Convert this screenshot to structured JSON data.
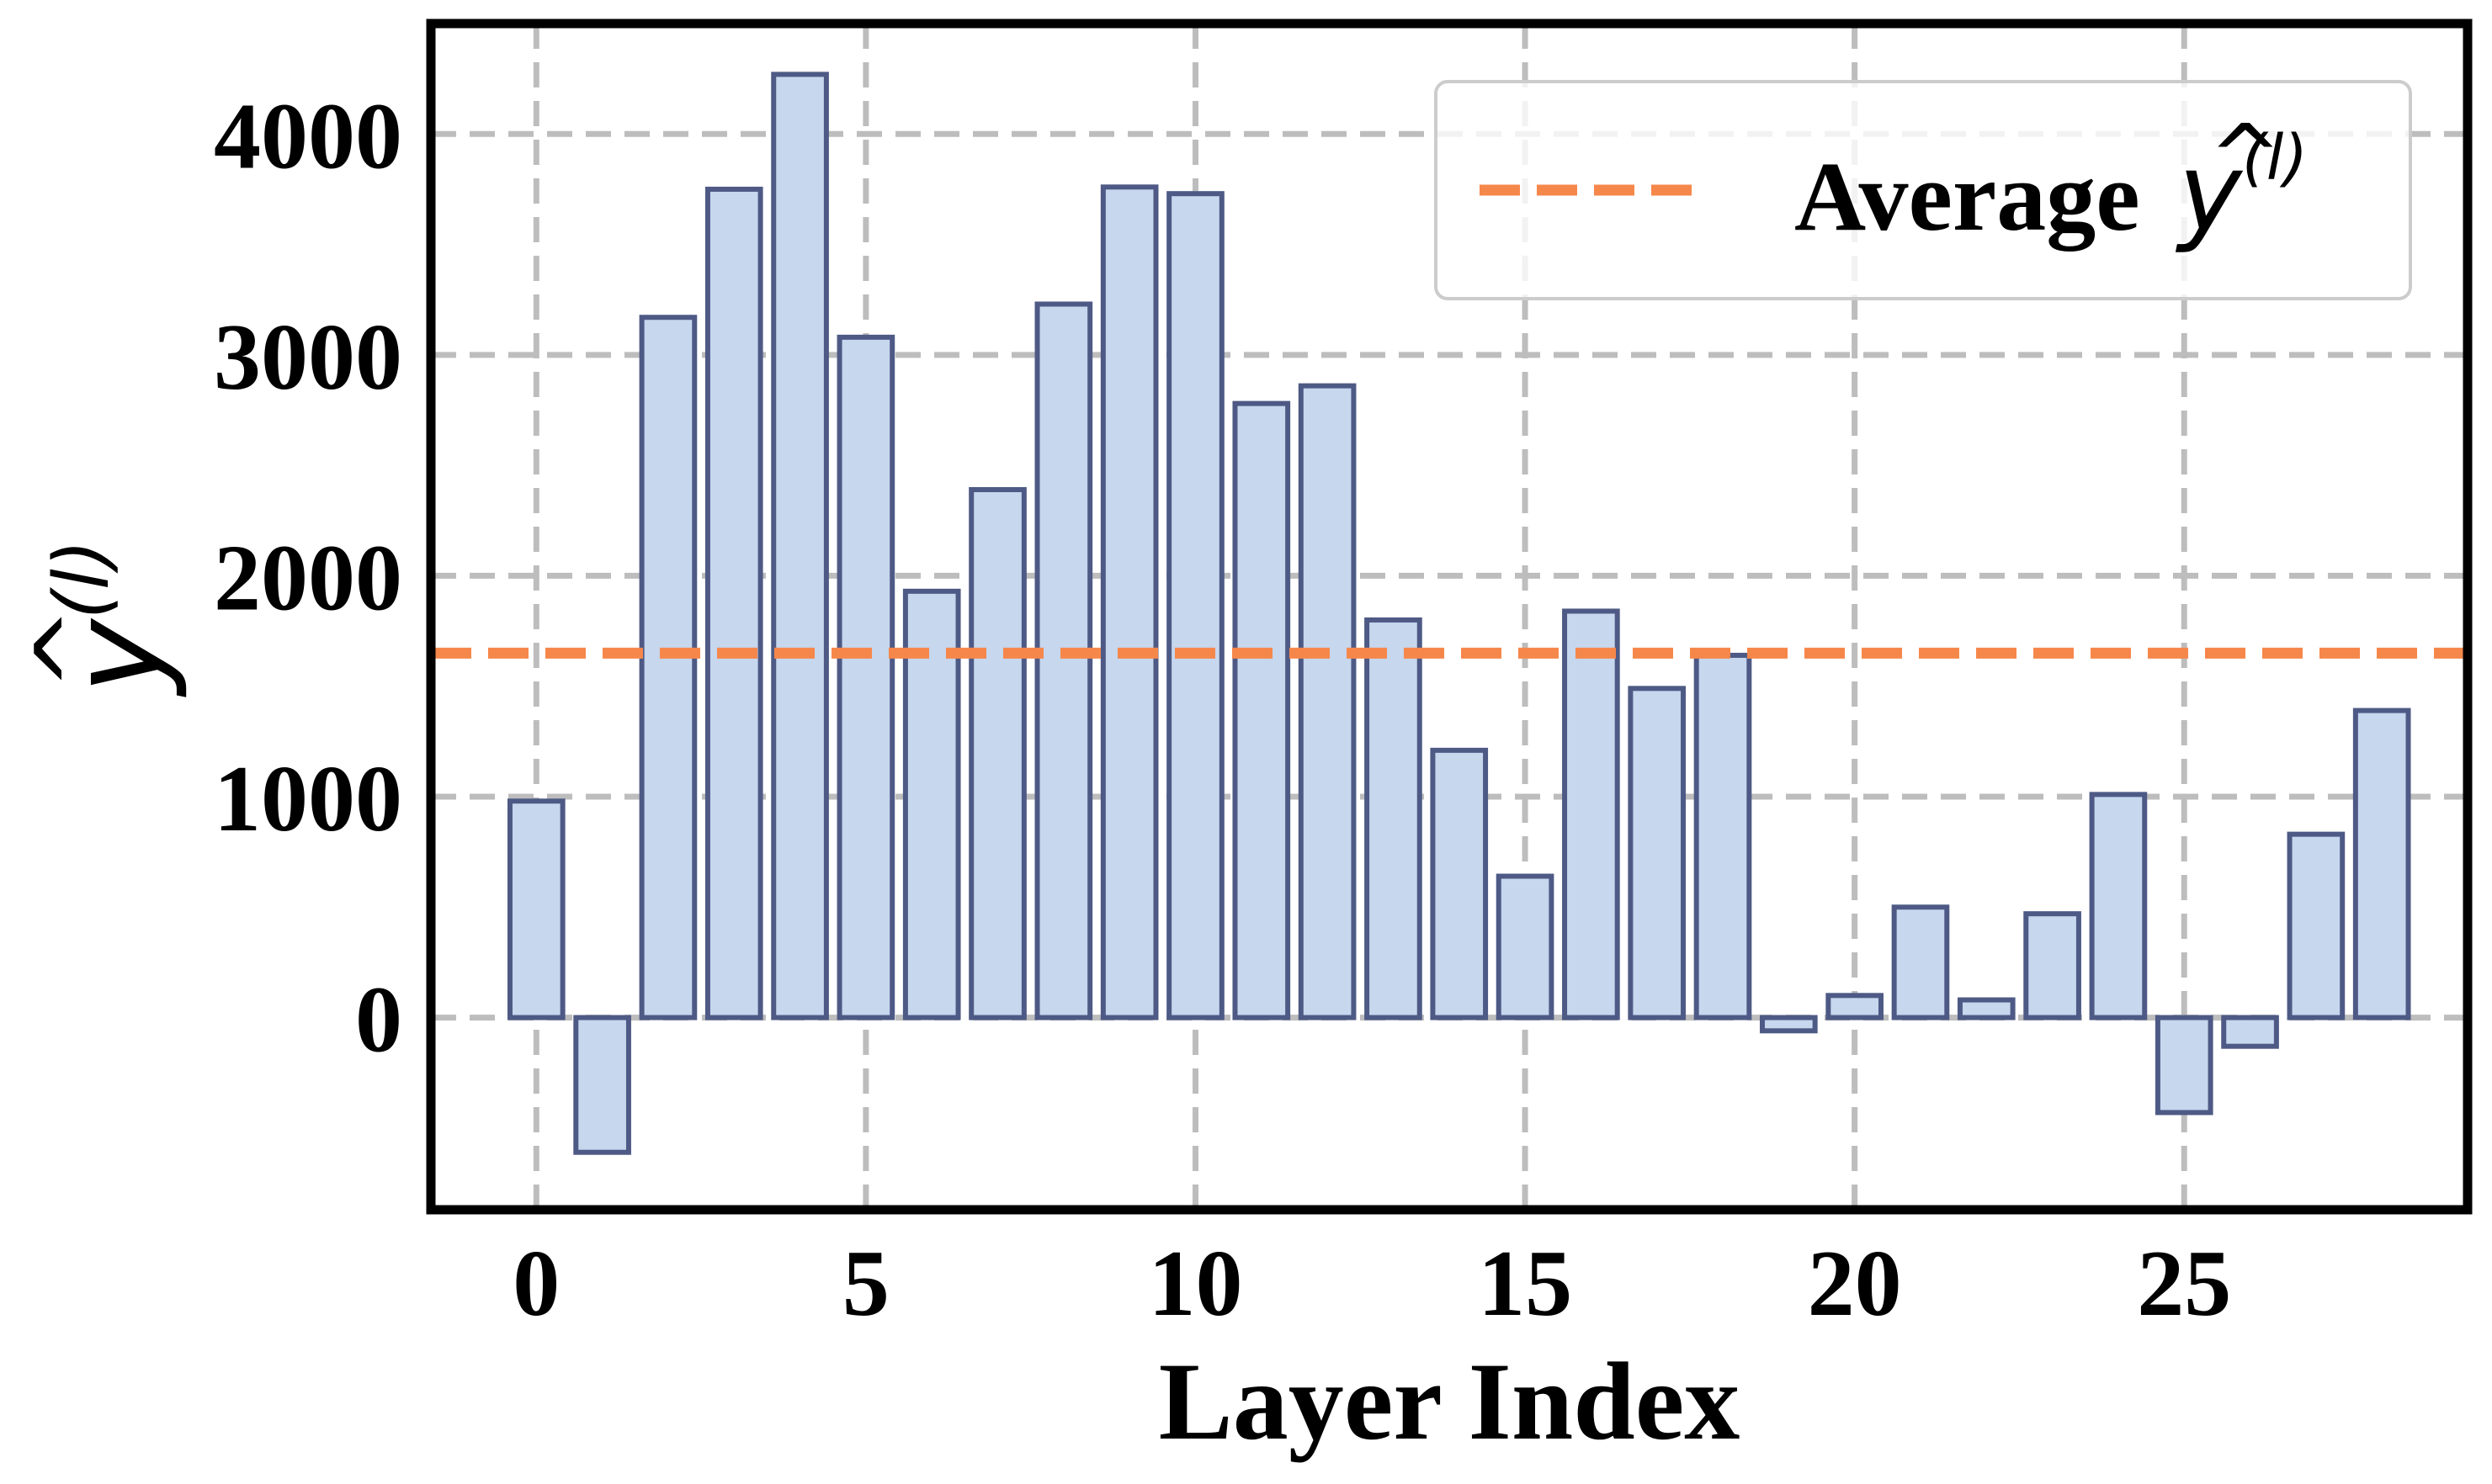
{
  "chart_data": {
    "type": "bar",
    "xlabel": "Layer Index",
    "ylabel": "ŷ(l)",
    "x": [
      0,
      1,
      2,
      3,
      4,
      5,
      6,
      7,
      8,
      9,
      10,
      11,
      12,
      13,
      14,
      15,
      16,
      17,
      18,
      19,
      20,
      21,
      22,
      23,
      24,
      25,
      26,
      27,
      28
    ],
    "values": [
      980,
      -610,
      3170,
      3750,
      4270,
      3080,
      1930,
      2390,
      3230,
      3760,
      3730,
      2780,
      2860,
      1800,
      1210,
      640,
      1840,
      1490,
      1640,
      -60,
      100,
      500,
      80,
      470,
      1010,
      -430,
      -130,
      830,
      1390
    ],
    "xlim": [
      -1.6,
      29.3
    ],
    "ylim": [
      -870,
      4500
    ],
    "xticks": [
      0,
      5,
      10,
      15,
      20,
      25
    ],
    "yticks": [
      0,
      1000,
      2000,
      3000,
      4000
    ],
    "grid": true,
    "bar_fill": "#c6d7ee",
    "bar_edge": "#4e5a85",
    "reference_lines": [
      {
        "label": "Average ŷ(l)",
        "value": 1650,
        "color": "#f6874b",
        "style": "dashed"
      }
    ],
    "legend": {
      "position": "top-right",
      "entries": [
        {
          "base": "Average",
          "sym": "y",
          "hat": "^",
          "sup": "(l)"
        }
      ]
    }
  }
}
